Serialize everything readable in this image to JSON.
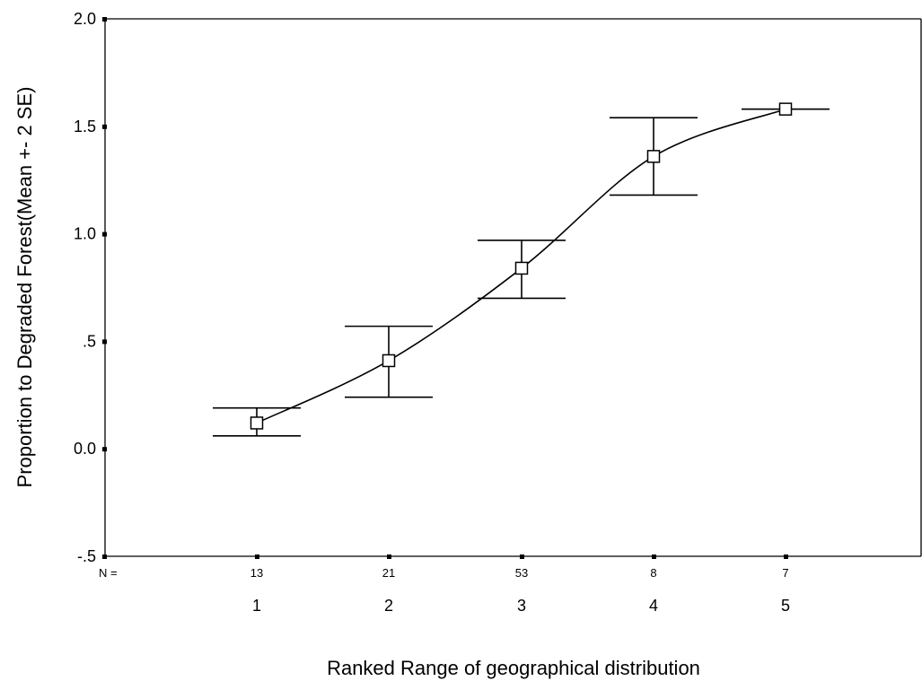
{
  "chart_data": {
    "type": "line",
    "title": "",
    "xlabel": "Ranked Range of geographical distribution",
    "ylabel": "Proportion to Degraded Forest(Mean +- 2 SE)",
    "ylim": [
      -0.5,
      2.0
    ],
    "yticks": [
      {
        "value": -0.5,
        "label": "-.5"
      },
      {
        "value": 0.0,
        "label": "0.0"
      },
      {
        "value": 0.5,
        "label": ".5"
      },
      {
        "value": 1.0,
        "label": "1.0"
      },
      {
        "value": 1.5,
        "label": "1.5"
      },
      {
        "value": 2.0,
        "label": "2.0"
      }
    ],
    "categories": [
      "1",
      "2",
      "3",
      "4",
      "5"
    ],
    "n_label": "N =",
    "n_values": [
      "13",
      "21",
      "53",
      "8",
      "7"
    ],
    "series": [
      {
        "mean": [
          0.12,
          0.41,
          0.84,
          1.36,
          1.58
        ],
        "lower": [
          0.06,
          0.24,
          0.7,
          1.18,
          1.58
        ],
        "upper": [
          0.19,
          0.57,
          0.97,
          1.54,
          1.58
        ]
      }
    ],
    "grid": false,
    "legend": "none"
  }
}
